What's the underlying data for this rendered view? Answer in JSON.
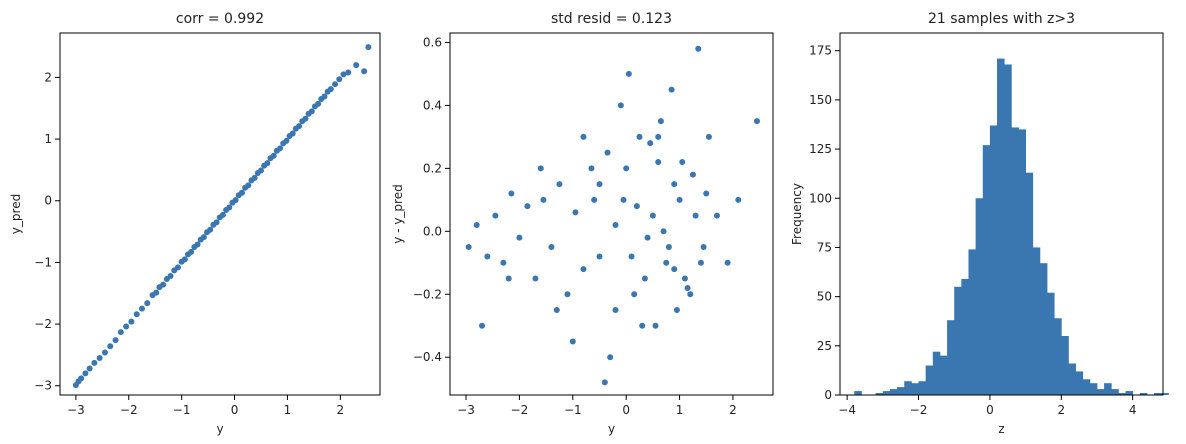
{
  "colors": {
    "marker": "#3a76b0",
    "bar": "#3a76b0",
    "axis": "#000000",
    "text": "#222222"
  },
  "chart_data": [
    {
      "type": "scatter",
      "title": "corr = 0.992",
      "xlabel": "y",
      "ylabel": "y_pred",
      "xlim": [
        -3.3,
        2.75
      ],
      "ylim": [
        -3.15,
        2.72
      ],
      "xticks": [
        -3,
        -2,
        -1,
        0,
        1,
        2
      ],
      "yticks": [
        -3,
        -2,
        -1,
        0,
        1,
        2
      ],
      "xtick_labels": [
        "−3",
        "−2",
        "−1",
        "0",
        "1",
        "2"
      ],
      "ytick_labels": [
        "−3",
        "−2",
        "−1",
        "0",
        "1",
        "2"
      ],
      "points": {
        "x": [
          -3.0,
          -2.95,
          -2.9,
          -2.82,
          -2.74,
          -2.65,
          -2.55,
          -2.45,
          -2.35,
          -2.25,
          -2.15,
          -2.05,
          -1.95,
          -1.85,
          -1.75,
          -1.65,
          -1.55,
          -1.48,
          -1.42,
          -1.35,
          -1.28,
          -1.21,
          -1.14,
          -1.07,
          -1.0,
          -0.94,
          -0.88,
          -0.82,
          -0.76,
          -0.7,
          -0.64,
          -0.58,
          -0.52,
          -0.46,
          -0.4,
          -0.34,
          -0.28,
          -0.22,
          -0.16,
          -0.1,
          -0.04,
          0.02,
          0.08,
          0.14,
          0.2,
          0.26,
          0.32,
          0.38,
          0.44,
          0.5,
          0.56,
          0.62,
          0.68,
          0.74,
          0.8,
          0.86,
          0.92,
          0.98,
          1.04,
          1.1,
          1.16,
          1.22,
          1.28,
          1.34,
          1.4,
          1.46,
          1.52,
          1.58,
          1.64,
          1.7,
          1.76,
          1.82,
          1.9,
          1.98,
          2.06,
          2.15,
          2.3,
          2.45,
          2.53
        ],
        "y": [
          -2.99,
          -2.93,
          -2.88,
          -2.8,
          -2.72,
          -2.63,
          -2.55,
          -2.46,
          -2.36,
          -2.26,
          -2.13,
          -2.04,
          -1.96,
          -1.84,
          -1.75,
          -1.66,
          -1.53,
          -1.49,
          -1.4,
          -1.36,
          -1.27,
          -1.22,
          -1.13,
          -1.08,
          -0.99,
          -0.95,
          -0.87,
          -0.83,
          -0.75,
          -0.71,
          -0.63,
          -0.59,
          -0.51,
          -0.47,
          -0.39,
          -0.35,
          -0.27,
          -0.23,
          -0.15,
          -0.11,
          -0.03,
          0.01,
          0.09,
          0.13,
          0.21,
          0.25,
          0.33,
          0.37,
          0.45,
          0.49,
          0.57,
          0.61,
          0.69,
          0.73,
          0.81,
          0.85,
          0.93,
          0.97,
          1.05,
          1.09,
          1.17,
          1.21,
          1.29,
          1.33,
          1.41,
          1.45,
          1.53,
          1.57,
          1.65,
          1.69,
          1.77,
          1.81,
          1.89,
          1.97,
          2.05,
          2.08,
          2.2,
          2.1,
          2.49
        ]
      }
    },
    {
      "type": "scatter",
      "title": "std resid = 0.123",
      "xlabel": "y",
      "ylabel": "y - y_pred",
      "xlim": [
        -3.3,
        2.75
      ],
      "ylim": [
        -0.52,
        0.63
      ],
      "xticks": [
        -3,
        -2,
        -1,
        0,
        1,
        2
      ],
      "yticks": [
        -0.4,
        -0.2,
        0.0,
        0.2,
        0.4,
        0.6
      ],
      "xtick_labels": [
        "−3",
        "−2",
        "−1",
        "0",
        "1",
        "2"
      ],
      "ytick_labels": [
        "−0.4",
        "−0.2",
        "0.0",
        "0.2",
        "0.4",
        "0.6"
      ],
      "points": {
        "x": [
          -2.95,
          -2.8,
          -2.6,
          -2.45,
          -2.3,
          -2.15,
          -2.0,
          -1.85,
          -1.7,
          -1.55,
          -1.4,
          -1.25,
          -1.1,
          -0.95,
          -0.8,
          -0.65,
          -0.5,
          -0.35,
          -0.2,
          -0.05,
          0.05,
          0.15,
          0.25,
          0.35,
          0.45,
          0.55,
          0.65,
          0.75,
          0.85,
          0.95,
          1.05,
          1.15,
          1.25,
          1.35,
          1.45,
          1.55,
          1.7,
          1.9,
          2.1,
          2.45,
          -2.7,
          -2.2,
          -1.6,
          -1.0,
          -0.6,
          -0.3,
          0.0,
          0.3,
          0.6,
          0.9,
          1.2,
          1.5,
          -0.4,
          -0.1,
          0.5,
          1.0,
          1.4,
          0.8,
          -0.2,
          0.1,
          0.7,
          1.3,
          -1.3,
          -0.8,
          0.4,
          0.9,
          -0.5,
          0.2,
          1.1,
          0.6
        ],
        "y": [
          -0.05,
          0.02,
          -0.08,
          0.05,
          -0.1,
          0.12,
          -0.02,
          0.08,
          -0.15,
          0.1,
          -0.05,
          0.15,
          -0.2,
          0.06,
          -0.12,
          0.2,
          -0.08,
          0.25,
          -0.25,
          0.1,
          0.5,
          -0.2,
          0.3,
          -0.15,
          0.28,
          -0.3,
          0.35,
          -0.1,
          0.45,
          -0.25,
          0.22,
          -0.18,
          0.18,
          0.58,
          -0.05,
          0.3,
          0.05,
          -0.1,
          0.1,
          0.35,
          -0.3,
          -0.15,
          0.2,
          -0.35,
          0.1,
          -0.4,
          0.2,
          -0.3,
          0.3,
          0.15,
          -0.2,
          0.12,
          -0.48,
          0.4,
          0.05,
          0.1,
          -0.1,
          -0.05,
          0.02,
          -0.08,
          0.0,
          0.05,
          -0.25,
          0.3,
          -0.02,
          -0.12,
          0.15,
          0.08,
          -0.15,
          0.22
        ]
      }
    },
    {
      "type": "bar",
      "title": "21 samples with z>3",
      "xlabel": "z",
      "ylabel": "Frequency",
      "xlim": [
        -4.2,
        4.85
      ],
      "ylim": [
        0,
        184
      ],
      "xticks": [
        -4,
        -2,
        0,
        2,
        4
      ],
      "yticks": [
        0,
        25,
        50,
        75,
        100,
        125,
        150,
        175
      ],
      "xtick_labels": [
        "−4",
        "−2",
        "0",
        "2",
        "4"
      ],
      "ytick_labels": [
        "0",
        "25",
        "50",
        "75",
        "100",
        "125",
        "150",
        "175"
      ],
      "bin_start": -4.0,
      "bin_width": 0.2,
      "values": [
        0,
        2,
        0,
        0,
        1,
        2,
        3,
        4,
        7,
        6,
        7,
        15,
        22,
        20,
        38,
        55,
        59,
        74,
        100,
        127,
        137,
        171,
        168,
        136,
        135,
        113,
        75,
        67,
        52,
        39,
        30,
        16,
        12,
        8,
        6,
        3,
        6,
        3,
        1,
        2,
        0,
        1,
        0,
        1,
        1
      ]
    }
  ]
}
